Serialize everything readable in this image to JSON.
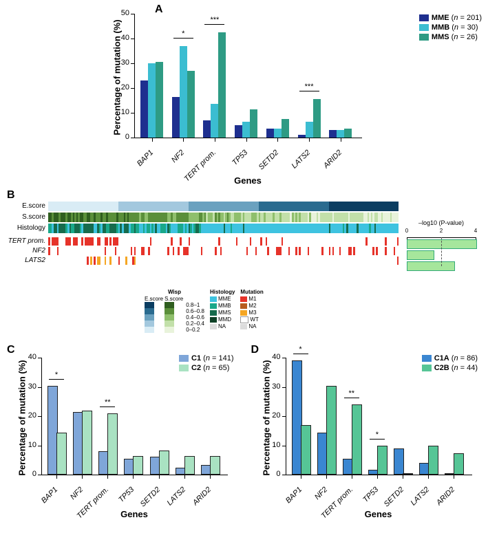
{
  "panelA": {
    "label": "A",
    "ylabel": "Percentage of mutation (%)",
    "xlabel": "Genes",
    "ylim": [
      0,
      50
    ],
    "ytick_step": 10,
    "genes": [
      "BAP1",
      "NF2",
      "TERT prom.",
      "TP53",
      "SETD2",
      "LATS2",
      "ARID2"
    ],
    "series": [
      {
        "name": "MME",
        "n": 201,
        "color": "#1e2f8f",
        "values": [
          23,
          16.5,
          7,
          5,
          3.5,
          1,
          3
        ]
      },
      {
        "name": "MMB",
        "n": 30,
        "color": "#3bbdd1",
        "values": [
          30,
          37,
          13.5,
          6.5,
          3.5,
          6.5,
          3
        ]
      },
      {
        "name": "MMS",
        "n": 26,
        "color": "#2e9b84",
        "values": [
          30.5,
          27,
          42.5,
          11.5,
          7.5,
          15.5,
          3.5
        ]
      }
    ],
    "significance": [
      {
        "gene_index": 1,
        "label": "*"
      },
      {
        "gene_index": 2,
        "label": "***"
      },
      {
        "gene_index": 5,
        "label": "***"
      }
    ]
  },
  "panelB": {
    "label": "B",
    "tracks": [
      "E.score",
      "S.score",
      "Histology",
      "TERT prom.",
      "NF2",
      "LATS2"
    ],
    "pvalue_label": "–log10 (P-value)",
    "pvalue_max": 4,
    "pvalue_ticks": [
      0,
      2,
      4
    ],
    "pvalues": [
      4.7,
      1.5,
      2.7
    ],
    "pvalue_color": "#a6e69c",
    "n_samples": 200,
    "wisp_legend": {
      "title": "Wisp",
      "cols": [
        {
          "title": "E.score",
          "palette": [
            "#0b3d61",
            "#2a6b8f",
            "#6aa1bf",
            "#a3c8de",
            "#d9ecf5"
          ]
        },
        {
          "title": "S.score",
          "palette": [
            "#2f5e1f",
            "#5a8f3a",
            "#8fbf6c",
            "#c2e0a9",
            "#e8f3db"
          ]
        }
      ],
      "labels": [
        "0.8–1",
        "0.6–0.8",
        "0.4–0.6",
        "0.2–0.4",
        "0–0.2"
      ]
    },
    "histology_legend": {
      "title": "Histology",
      "items": [
        {
          "label": "MME",
          "color": "#3ec3e0"
        },
        {
          "label": "MMB",
          "color": "#1aa88a"
        },
        {
          "label": "MMS",
          "color": "#176b4d"
        },
        {
          "label": "MMD",
          "color": "#0e4026"
        },
        {
          "label": "NA",
          "color": "#dcdcdc"
        }
      ]
    },
    "mutation_legend": {
      "title": "Mutation",
      "items": [
        {
          "label": "M1",
          "color": "#e6332a"
        },
        {
          "label": "M2",
          "color": "#b85c20"
        },
        {
          "label": "M3",
          "color": "#f5a623"
        },
        {
          "label": "WT",
          "color": "#ffffff"
        },
        {
          "label": "NA",
          "color": "#dcdcdc"
        }
      ]
    }
  },
  "panelC": {
    "label": "C",
    "ylabel": "Percentage of mutation (%)",
    "xlabel": "Genes",
    "ylim": [
      0,
      40
    ],
    "ytick_step": 10,
    "genes": [
      "BAP1",
      "NF2",
      "TERT prom.",
      "TP53",
      "SETD2",
      "LATS2",
      "ARID2"
    ],
    "series": [
      {
        "name": "C1",
        "n": 141,
        "color": "#7fa6d9",
        "values": [
          30,
          21,
          7.5,
          5,
          5.6,
          2,
          2.8
        ]
      },
      {
        "name": "C2",
        "n": 65,
        "color": "#a9e2c2",
        "values": [
          14,
          21.5,
          20.5,
          6,
          7.8,
          6,
          6
        ]
      }
    ],
    "significance": [
      {
        "gene_index": 0,
        "label": "*"
      },
      {
        "gene_index": 2,
        "label": "**"
      }
    ]
  },
  "panelD": {
    "label": "D",
    "ylabel": "Percentage of mutation (%)",
    "xlabel": "Genes",
    "ylim": [
      0,
      40
    ],
    "ytick_step": 10,
    "genes": [
      "BAP1",
      "NF2",
      "TERT prom.",
      "TP53",
      "SETD2",
      "LATS2",
      "ARID2"
    ],
    "series": [
      {
        "name": "C1A",
        "n": 86,
        "color": "#3a86d1",
        "values": [
          38.5,
          14,
          5,
          1.2,
          8.4,
          3.5,
          0
        ]
      },
      {
        "name": "C2B",
        "n": 44,
        "color": "#56c596",
        "values": [
          16.5,
          30,
          23.5,
          9.3,
          0,
          9.3,
          6.8
        ]
      }
    ],
    "significance": [
      {
        "gene_index": 0,
        "label": "*"
      },
      {
        "gene_index": 2,
        "label": "**"
      },
      {
        "gene_index": 3,
        "label": "*"
      }
    ]
  }
}
